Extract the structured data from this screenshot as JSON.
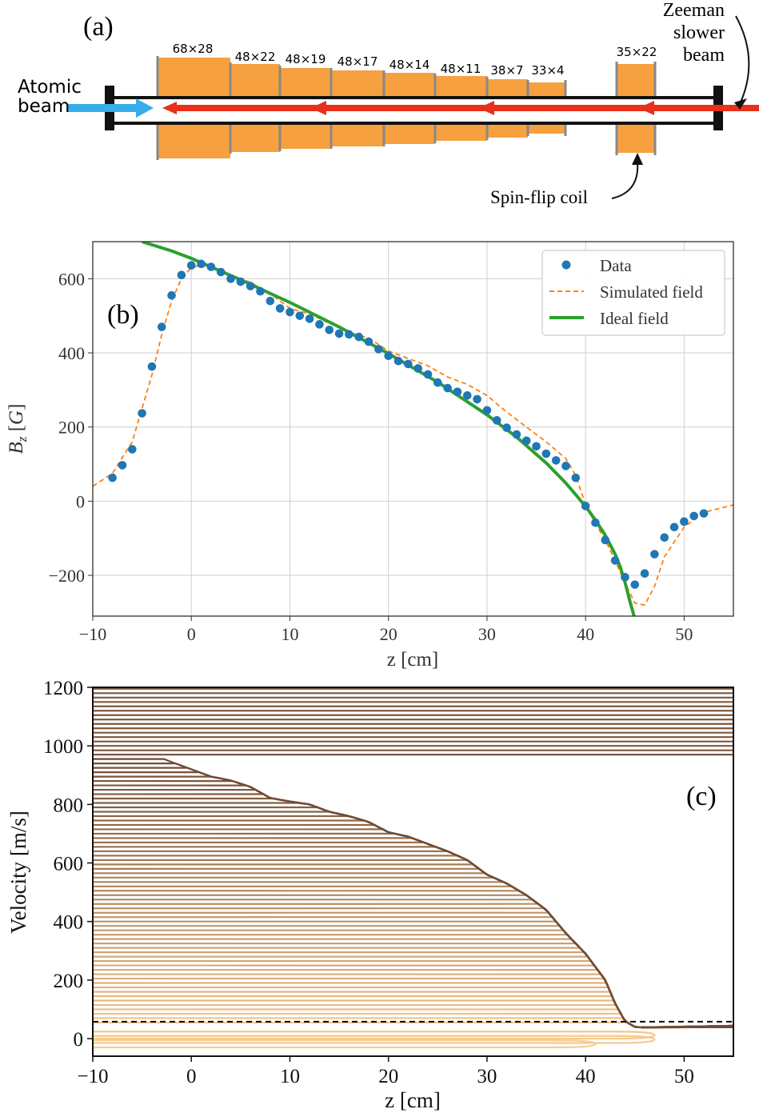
{
  "panel_a": {
    "label": "(a)",
    "atomic_beam_label": [
      "Atomic",
      "beam"
    ],
    "slower_beam_label": [
      "Zeeman",
      "slower",
      "beam"
    ],
    "spin_flip_label": "Spin-flip coil",
    "coil_labels": [
      "68×28",
      "48×22",
      "48×19",
      "48×17",
      "48×14",
      "48×11",
      "38×7",
      "33×4",
      "35×22"
    ],
    "colors": {
      "coil": "#F7A040",
      "atomic_beam": "#35AEEA",
      "laser": "#E8301A",
      "frame": "#111111"
    }
  },
  "chart_data": [
    {
      "type": "scatter",
      "panel_label": "(b)",
      "xlabel": "z [cm]",
      "ylabel": "B_z [G]",
      "xlim": [
        -10,
        55
      ],
      "ylim": [
        -310,
        700
      ],
      "xticks": [
        "−10",
        "0",
        "10",
        "20",
        "30",
        "40",
        "50"
      ],
      "yticks": [
        "−200",
        "0",
        "200",
        "400",
        "600"
      ],
      "xtick_values": [
        -10,
        0,
        10,
        20,
        30,
        40,
        50
      ],
      "ytick_values": [
        -200,
        0,
        200,
        400,
        600
      ],
      "grid": true,
      "legend_position": "top-right",
      "series": [
        {
          "name": "Data",
          "style": "markers",
          "color": "#1F77B4",
          "x": [
            -8,
            -7,
            -6,
            -5,
            -4,
            -3,
            -2,
            -1,
            0,
            1,
            2,
            3,
            4,
            5,
            6,
            7,
            8,
            9,
            10,
            11,
            12,
            13,
            14,
            15,
            16,
            17,
            18,
            19,
            20,
            21,
            22,
            23,
            24,
            25,
            26,
            27,
            28,
            29,
            30,
            31,
            32,
            33,
            34,
            35,
            36,
            37,
            38,
            39,
            40,
            41,
            42,
            43,
            44,
            45,
            46,
            47,
            48,
            49,
            50,
            51,
            52
          ],
          "y": [
            63,
            97,
            140,
            237,
            363,
            470,
            555,
            610,
            636,
            640,
            632,
            618,
            600,
            592,
            580,
            566,
            540,
            520,
            510,
            500,
            492,
            477,
            462,
            452,
            450,
            443,
            430,
            410,
            392,
            378,
            370,
            358,
            342,
            320,
            305,
            295,
            285,
            275,
            245,
            218,
            198,
            180,
            163,
            148,
            128,
            110,
            95,
            63,
            -13,
            -58,
            -105,
            -160,
            -205,
            -225,
            -195,
            -143,
            -98,
            -70,
            -55,
            -40,
            -33
          ]
        },
        {
          "name": "Simulated field",
          "style": "dashed",
          "color": "#FF7F0E",
          "x": [
            -10,
            -8,
            -6,
            -5,
            -4,
            -3,
            -2,
            -1,
            0,
            1,
            2,
            4,
            6,
            8,
            10,
            12,
            14,
            16,
            18,
            20,
            22,
            24,
            26,
            28,
            30,
            32,
            34,
            36,
            38,
            39,
            40,
            41,
            42,
            43,
            44,
            45,
            46,
            47,
            48,
            50,
            52,
            55
          ],
          "y": [
            40,
            75,
            160,
            250,
            340,
            450,
            540,
            600,
            630,
            637,
            630,
            610,
            590,
            560,
            520,
            505,
            480,
            455,
            440,
            405,
            385,
            365,
            335,
            315,
            285,
            240,
            200,
            160,
            115,
            70,
            -10,
            -60,
            -105,
            -160,
            -220,
            -275,
            -280,
            -230,
            -150,
            -70,
            -30,
            -10
          ]
        },
        {
          "name": "Ideal field",
          "style": "solid",
          "color": "#2CA02C",
          "x": [
            -5,
            -2,
            0,
            5,
            10,
            15,
            20,
            25,
            30,
            33,
            36,
            38,
            40,
            41,
            42,
            43,
            43.5,
            44,
            44.5,
            45
          ],
          "y": [
            700,
            675,
            655,
            597,
            536,
            470,
            398,
            321,
            233,
            173,
            103,
            49,
            -14,
            -51,
            -92,
            -143,
            -176,
            -218,
            -270,
            -318
          ]
        }
      ]
    },
    {
      "type": "line",
      "panel_label": "(c)",
      "xlabel": "z [cm]",
      "ylabel": "Velocity [m/s]",
      "xlim": [
        -10,
        55
      ],
      "ylim": [
        -60,
        1200
      ],
      "xticks": [
        "−10",
        "0",
        "10",
        "20",
        "30",
        "40",
        "50"
      ],
      "yticks": [
        "0",
        "200",
        "400",
        "600",
        "800",
        "1000",
        "1200"
      ],
      "xtick_values": [
        -10,
        0,
        10,
        20,
        30,
        40,
        50
      ],
      "ytick_values": [
        0,
        200,
        400,
        600,
        800,
        1000,
        1200
      ],
      "grid": false,
      "capture_velocity_dashed_line": 58,
      "uncaptured_velocities": [
        970,
        985,
        1000,
        1015,
        1030,
        1045,
        1060,
        1075,
        1090,
        1105,
        1120,
        1135,
        1150,
        1165,
        1180,
        1195
      ],
      "captured_envelope": {
        "z": [
          -3,
          -2,
          0,
          2,
          4,
          6,
          8,
          10,
          12,
          14,
          16,
          18,
          20,
          22,
          24,
          26,
          28,
          30,
          32,
          34,
          36,
          38,
          40,
          42,
          43,
          44,
          45,
          46
        ],
        "v": [
          958,
          945,
          920,
          895,
          882,
          860,
          822,
          810,
          800,
          775,
          760,
          740,
          705,
          690,
          665,
          640,
          610,
          560,
          530,
          490,
          440,
          360,
          290,
          200,
          120,
          60,
          40,
          38
        ]
      },
      "final_velocity": 38,
      "velocity_step": 15,
      "color_light": "#F9CC90",
      "color_dark": "#6E4A35"
    }
  ]
}
